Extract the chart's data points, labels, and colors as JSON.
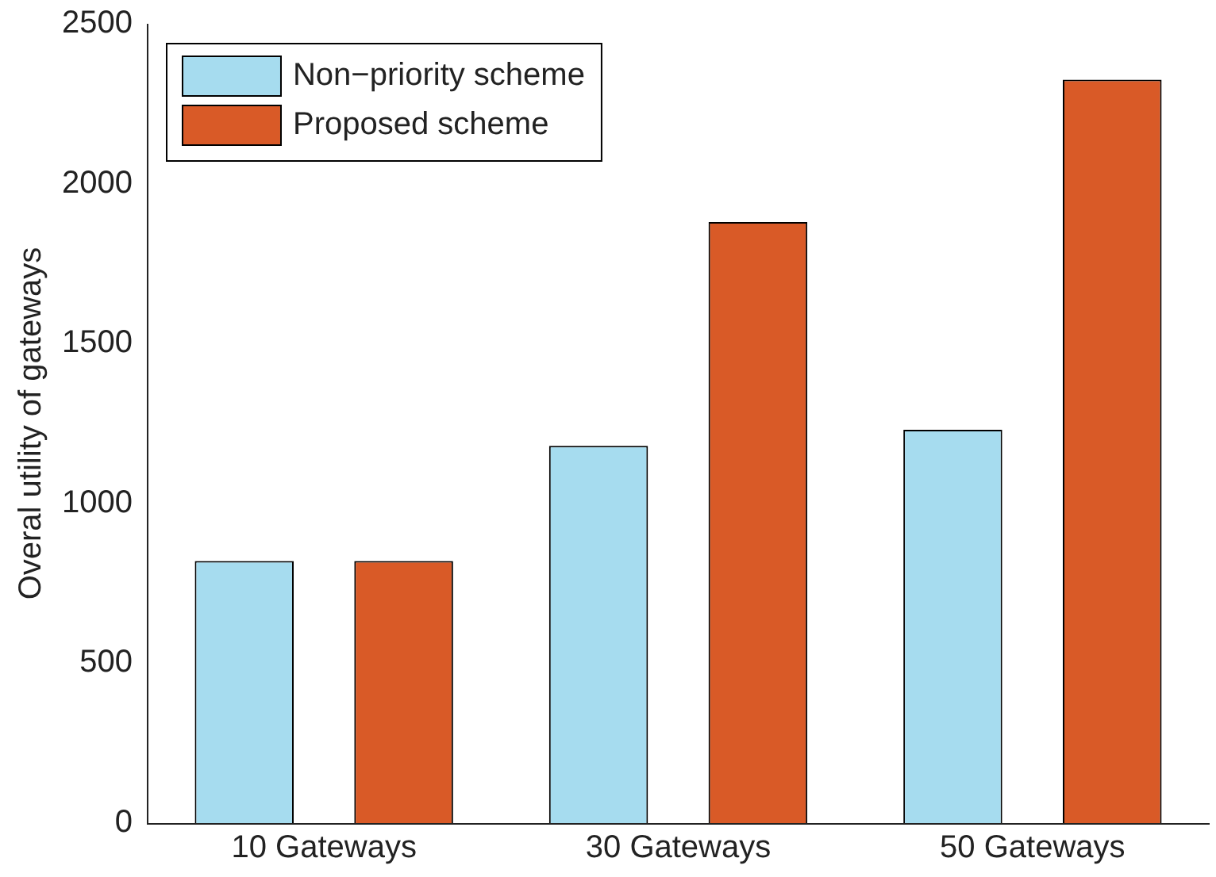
{
  "chart_data": {
    "type": "bar",
    "ylabel": "Overal utility of gateways",
    "categories": [
      "10 Gateways",
      "30 Gateways",
      "50 Gateways"
    ],
    "series": [
      {
        "name": "Non−priority scheme",
        "color": "#a6dcef",
        "values": [
          820,
          1180,
          1230
        ]
      },
      {
        "name": "Proposed scheme",
        "color": "#d95a27",
        "values": [
          820,
          1880,
          2325
        ]
      }
    ],
    "ylim": [
      0,
      2500
    ],
    "yticks": [
      0,
      500,
      1000,
      1500,
      2000,
      2500
    ],
    "grid": false,
    "legend": "top left"
  }
}
